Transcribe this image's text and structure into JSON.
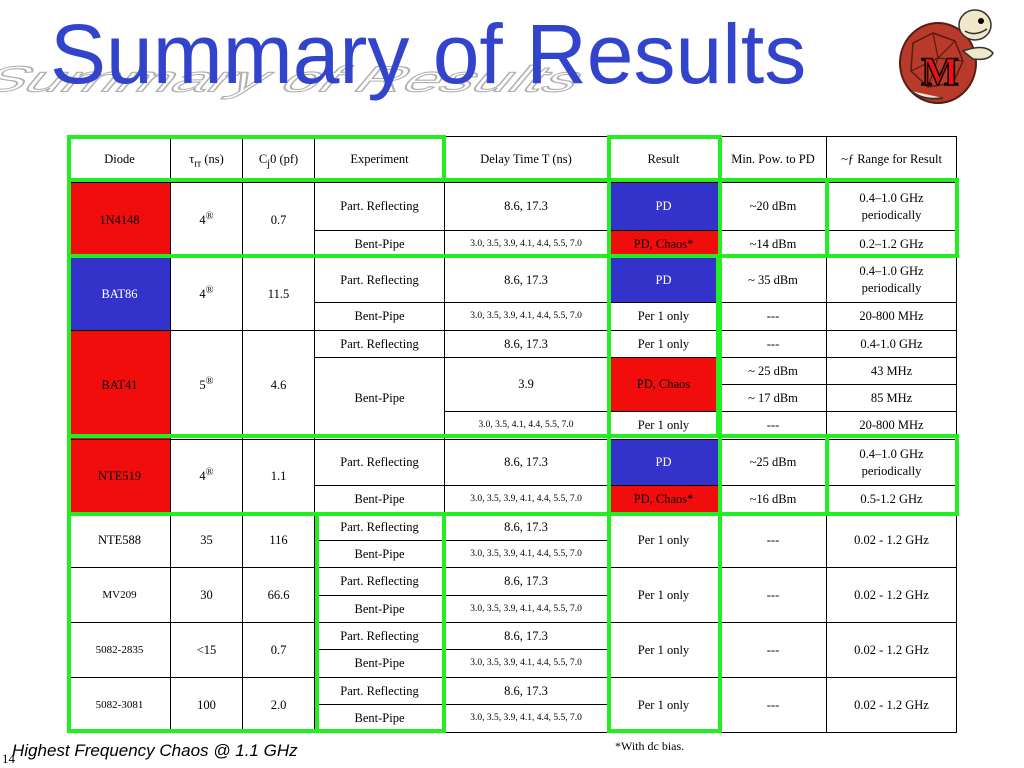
{
  "slide": {
    "title": "Summary of Results",
    "footnote": "*With dc bias.",
    "bottom_text": "Highest Frequency Chaos @ 1.1 GHz",
    "page_number": "14",
    "logo": "maryland-terrapin-logo"
  },
  "table": {
    "headers": {
      "diode": "Diode",
      "trr_symbol": "τ",
      "trr_sub": "rr",
      "trr_unit": " (ns)",
      "cj_symbol": "C",
      "cj_sub": "j",
      "cj_unit": "0 (pf)",
      "experiment": "Experiment",
      "delay": "Delay Time T (ns)",
      "result": "Result",
      "min_pow": "Min. Pow. to PD",
      "range": "~ƒ Range for Result"
    },
    "diodes": {
      "d1": {
        "name": "1N4148",
        "trr": "4",
        "trr_mark": "®",
        "cj": "0.7"
      },
      "d2": {
        "name": "BAT86",
        "trr": "4",
        "trr_mark": "®",
        "cj": "11.5"
      },
      "d3": {
        "name": "BAT41",
        "trr": "5",
        "trr_mark": "®",
        "cj": "4.6"
      },
      "d4": {
        "name": "NTE519",
        "trr": "4",
        "trr_mark": "®",
        "cj": "1.1"
      },
      "d5": {
        "name": "NTE588",
        "trr": "35",
        "cj": "116"
      },
      "d6": {
        "name": "MV209",
        "trr": "30",
        "cj": "66.6"
      },
      "d7": {
        "name": "5082-2835",
        "trr": "<15",
        "cj": "0.7"
      },
      "d8": {
        "name": "5082-3081",
        "trr": "100",
        "cj": "2.0"
      }
    },
    "rows": {
      "r1": {
        "exp": "Part. Reflecting",
        "delay": "8.6, 17.3",
        "result": "PD",
        "pow": "~20 dBm",
        "range": "0.4–1.0 GHz periodically"
      },
      "r2": {
        "exp": "Bent-Pipe",
        "delay": "3.0, 3.5, 3.9, 4.1, 4.4,  5.5, 7.0",
        "result": "PD, Chaos*",
        "pow": "~14 dBm",
        "range": "0.2–1.2 GHz"
      },
      "r3": {
        "exp": "Part. Reflecting",
        "delay": "8.6, 17.3",
        "result": "PD",
        "pow": "~ 35 dBm",
        "range": "0.4–1.0 GHz periodically"
      },
      "r4": {
        "exp": "Bent-Pipe",
        "delay": "3.0, 3.5, 3.9, 4.1, 4.4,  5.5, 7.0",
        "result": "Per 1 only",
        "pow": "---",
        "range": "20-800 MHz"
      },
      "r5": {
        "exp": "Part. Reflecting",
        "delay": "8.6, 17.3",
        "result": "Per 1 only",
        "pow": "---",
        "range": "0.4-1.0 GHz"
      },
      "r6": {
        "exp": "Bent-Pipe",
        "delay": "3.9",
        "result": "PD, Chaos",
        "pow": "~ 25 dBm",
        "range": "43 MHz"
      },
      "r7": {
        "pow": "~ 17 dBm",
        "range": "85 MHz"
      },
      "r8": {
        "delay": "3.0, 3.5, 4.1, 4.4,  5.5, 7.0",
        "result": "Per 1 only",
        "pow": "---",
        "range": "20-800 MHz"
      },
      "r9": {
        "exp": "Part. Reflecting",
        "delay": "8.6, 17.3",
        "result": "PD",
        "pow": "~25 dBm",
        "range": "0.4–1.0 GHz periodically"
      },
      "r10": {
        "exp": "Bent-Pipe",
        "delay": "3.0, 3.5, 3.9, 4.1, 4.4,  5.5, 7.0",
        "result": "PD, Chaos*",
        "pow": "~16 dBm",
        "range": "0.5-1.2 GHz"
      },
      "r11": {
        "exp": "Part. Reflecting",
        "delay": "8.6, 17.3",
        "result": "Per 1 only",
        "pow": "---",
        "range": "0.02 - 1.2 GHz"
      },
      "r12": {
        "exp": "Bent-Pipe",
        "delay": "3.0, 3.5, 3.9, 4.1, 4.4,  5.5, 7.0"
      },
      "r13": {
        "exp": "Part. Reflecting",
        "delay": "8.6, 17.3",
        "result": "Per 1 only",
        "pow": "---",
        "range": "0.02 - 1.2 GHz"
      },
      "r14": {
        "exp": "Bent-Pipe",
        "delay": "3.0, 3.5, 3.9, 4.1, 4.4,  5.5, 7.0"
      },
      "r15": {
        "exp": "Part. Reflecting",
        "delay": "8.6, 17.3",
        "result": "Per 1 only",
        "pow": "---",
        "range": "0.02 - 1.2 GHz"
      },
      "r16": {
        "exp": "Bent-Pipe",
        "delay": "3.0, 3.5, 3.9, 4.1, 4.4,  5.5, 7.0"
      },
      "r17": {
        "exp": "Part. Reflecting",
        "delay": "8.6, 17.3",
        "result": "Per 1 only",
        "pow": "---",
        "range": "0.02 - 1.2 GHz"
      },
      "r18": {
        "exp": "Bent-Pipe",
        "delay": "3.0, 3.5, 3.9, 4.1, 4.4,  5.5, 7.0"
      }
    }
  },
  "colors": {
    "title": "#3344cc",
    "highlight_red": "#f20d0d",
    "highlight_blue": "#3333cc",
    "box_green": "#22ee22"
  }
}
